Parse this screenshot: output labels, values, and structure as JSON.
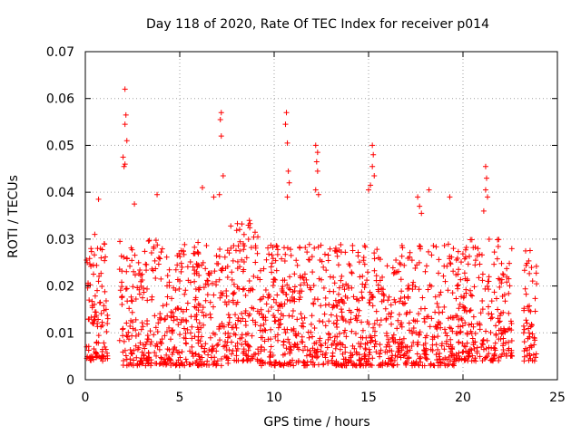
{
  "chart_data": {
    "type": "scatter",
    "title": "Day 118 of 2020, Rate Of TEC Index for receiver p014",
    "xlabel": "GPS time / hours",
    "ylabel": "ROTI / TECUs",
    "xlim": [
      0,
      25
    ],
    "ylim": [
      0,
      0.07
    ],
    "x_ticks": [
      0,
      5,
      10,
      15,
      20,
      25
    ],
    "x_tick_labels": [
      "0",
      "5",
      "10",
      "15",
      "20",
      "25"
    ],
    "y_ticks": [
      0,
      0.01,
      0.02,
      0.03,
      0.04,
      0.05,
      0.06,
      0.07
    ],
    "y_tick_labels": [
      "0",
      "0.01",
      "0.02",
      "0.03",
      "0.04",
      "0.05",
      "0.06",
      "0.07"
    ],
    "grid": true,
    "marker": "+",
    "color": "#ff0000",
    "series": [
      {
        "name": "ROTI",
        "description": "dense scatter of ROTI values, mostly 0.005-0.025 TECU/min",
        "points": [
          [
            2.1,
            0.062
          ],
          [
            2.15,
            0.0565
          ],
          [
            2.1,
            0.0545
          ],
          [
            2.2,
            0.051
          ],
          [
            2.0,
            0.0475
          ],
          [
            2.1,
            0.046
          ],
          [
            2.05,
            0.0455
          ],
          [
            7.2,
            0.057
          ],
          [
            7.15,
            0.0555
          ],
          [
            7.2,
            0.052
          ],
          [
            7.3,
            0.0435
          ],
          [
            7.1,
            0.0395
          ],
          [
            10.65,
            0.057
          ],
          [
            10.6,
            0.0545
          ],
          [
            10.7,
            0.0505
          ],
          [
            10.75,
            0.0445
          ],
          [
            10.8,
            0.042
          ],
          [
            10.7,
            0.039
          ],
          [
            12.2,
            0.05
          ],
          [
            12.3,
            0.0485
          ],
          [
            12.25,
            0.0465
          ],
          [
            12.3,
            0.0445
          ],
          [
            12.2,
            0.0405
          ],
          [
            12.35,
            0.0395
          ],
          [
            15.2,
            0.05
          ],
          [
            15.25,
            0.048
          ],
          [
            15.2,
            0.0455
          ],
          [
            15.3,
            0.0435
          ],
          [
            15.1,
            0.0415
          ],
          [
            15.0,
            0.0405
          ],
          [
            17.6,
            0.039
          ],
          [
            17.7,
            0.037
          ],
          [
            17.8,
            0.0355
          ],
          [
            18.2,
            0.0405
          ],
          [
            21.2,
            0.0455
          ],
          [
            21.25,
            0.043
          ],
          [
            21.2,
            0.0405
          ],
          [
            21.3,
            0.039
          ],
          [
            21.1,
            0.036
          ],
          [
            6.2,
            0.041
          ],
          [
            6.8,
            0.039
          ],
          [
            3.8,
            0.0395
          ],
          [
            2.6,
            0.0375
          ],
          [
            0.7,
            0.0385
          ],
          [
            19.3,
            0.039
          ],
          [
            0.1,
            0.025
          ],
          [
            0.3,
            0.028
          ],
          [
            0.5,
            0.031
          ],
          [
            0.8,
            0.028
          ],
          [
            1.0,
            0.029
          ],
          [
            0.2,
            0.017
          ],
          [
            0.4,
            0.012
          ],
          [
            0.6,
            0.008
          ],
          [
            0.9,
            0.006
          ],
          [
            0.3,
            0.005
          ],
          [
            1.1,
            0.015
          ],
          [
            0.7,
            0.021
          ]
        ]
      }
    ],
    "bands": [
      {
        "xmin": 0.05,
        "xmax": 1.2,
        "ymin": 0.004,
        "ymax": 0.029
      },
      {
        "xmin": 1.8,
        "xmax": 7.6,
        "ymin": 0.003,
        "ymax": 0.03
      },
      {
        "xmin": 7.6,
        "xmax": 9.2,
        "ymin": 0.004,
        "ymax": 0.034
      },
      {
        "xmin": 9.2,
        "xmax": 19.6,
        "ymin": 0.003,
        "ymax": 0.029
      },
      {
        "xmin": 19.6,
        "xmax": 22.1,
        "ymin": 0.004,
        "ymax": 0.03
      },
      {
        "xmin": 22.1,
        "xmax": 22.6,
        "ymin": 0.005,
        "ymax": 0.029
      },
      {
        "xmin": 23.2,
        "xmax": 23.9,
        "ymin": 0.004,
        "ymax": 0.028
      }
    ],
    "band_density": 1900
  }
}
